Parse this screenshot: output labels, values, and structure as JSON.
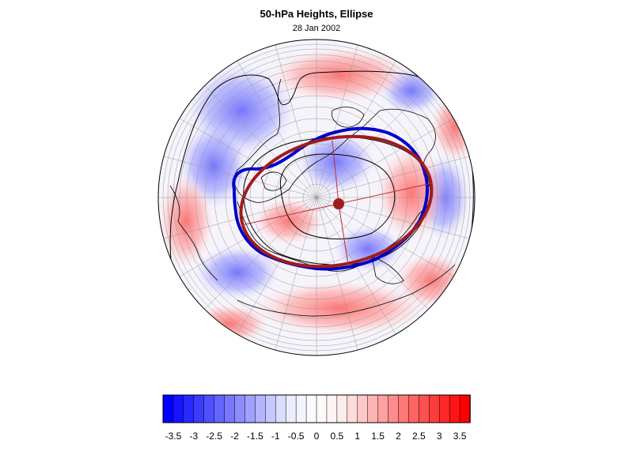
{
  "figure": {
    "title": "50-hPa Heights, Ellipse",
    "subtitle": "28 Jan 2002"
  },
  "colors": {
    "fitted_ellipse": "#a01c1c",
    "height_contour": "#0000c8",
    "center_marker": "#a01c1c",
    "coastlines": "#000000",
    "graticule": "#9a9a9a",
    "background": "#ffffff"
  },
  "colorbar": {
    "tick_labels": [
      "-3.5",
      "-3",
      "-2.5",
      "-2",
      "-1.5",
      "-1",
      "-0.5",
      "0",
      "0.5",
      "1",
      "1.5",
      "2",
      "2.5",
      "3",
      "3.5"
    ],
    "min": -3.75,
    "max": 3.75,
    "step": 0.25,
    "colors": [
      "#0000ff",
      "#1414ff",
      "#2828ff",
      "#3c3cff",
      "#5050ff",
      "#6464ff",
      "#7878ff",
      "#8c8cff",
      "#a0a0ff",
      "#b4b4ff",
      "#c8c8ff",
      "#dcdcff",
      "#ececff",
      "#f4f4ff",
      "#fafaff",
      "#fffafa",
      "#fff4f4",
      "#ffecec",
      "#ffdcdc",
      "#ffc8c8",
      "#ffb4b4",
      "#ffa0a0",
      "#ff8c8c",
      "#ff7878",
      "#ff6464",
      "#ff5050",
      "#ff3c3c",
      "#ff2828",
      "#ff1414",
      "#ff0000"
    ]
  },
  "map": {
    "projection": "polar orthographic, north pole at center",
    "field": "standardized 50-hPa height anomaly (shaded)"
  }
}
